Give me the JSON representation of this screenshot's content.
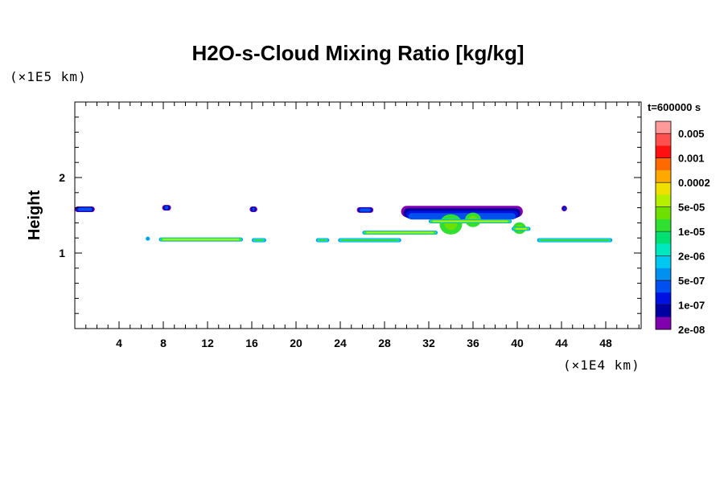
{
  "chart_data": {
    "type": "heatmap",
    "title": "H2O-s-Cloud Mixing Ratio [kg/kg]",
    "ylabel": "Height",
    "xlabel": "",
    "x_scale_label": "(×1E4 km)",
    "y_scale_label": "(×1E5 km)",
    "time_label": "t=600000 s",
    "xlim": [
      0,
      51.2
    ],
    "ylim": [
      0,
      3.0
    ],
    "x_ticks": [
      "4",
      "8",
      "12",
      "16",
      "20",
      "24",
      "28",
      "32",
      "36",
      "40",
      "44",
      "48"
    ],
    "x_tick_values": [
      4,
      8,
      12,
      16,
      20,
      24,
      28,
      32,
      36,
      40,
      44,
      48
    ],
    "y_ticks": [
      "1",
      "2"
    ],
    "y_tick_values": [
      1,
      2
    ],
    "colorbar": {
      "labels": [
        "0.005",
        "0.001",
        "0.0002",
        "5e-05",
        "1e-05",
        "2e-06",
        "5e-07",
        "1e-07",
        "2e-08"
      ],
      "colors_top_to_bottom": [
        "#ff9a9a",
        "#ff5050",
        "#ff1010",
        "#ff6a00",
        "#ffa800",
        "#f0e000",
        "#b4f000",
        "#6ee000",
        "#30e030",
        "#00e070",
        "#00e8c0",
        "#00c8f0",
        "#0090f0",
        "#0050f0",
        "#0010e0",
        "#0000a0",
        "#8000b0"
      ]
    },
    "features": [
      {
        "x0": 0.0,
        "x1": 1.8,
        "y": 1.58,
        "level": "2e-08"
      },
      {
        "x0": 7.9,
        "x1": 8.7,
        "y": 1.6,
        "level": "2e-08"
      },
      {
        "x0": 15.8,
        "x1": 16.5,
        "y": 1.58,
        "level": "2e-08"
      },
      {
        "x0": 25.5,
        "x1": 27.0,
        "y": 1.57,
        "level": "2e-08"
      },
      {
        "x0": 29.5,
        "x1": 40.5,
        "y": 1.55,
        "level": "2e-08"
      },
      {
        "x0": 44.0,
        "x1": 44.5,
        "y": 1.59,
        "level": "2e-08"
      },
      {
        "x0": 6.4,
        "x1": 6.8,
        "y": 1.19,
        "level": "5e-07"
      },
      {
        "x0": 7.6,
        "x1": 15.2,
        "y": 1.18,
        "level": "1e-05"
      },
      {
        "x0": 16.0,
        "x1": 17.3,
        "y": 1.17,
        "level": "2e-06"
      },
      {
        "x0": 21.8,
        "x1": 23.0,
        "y": 1.17,
        "level": "2e-06"
      },
      {
        "x0": 23.8,
        "x1": 29.5,
        "y": 1.17,
        "level": "2e-06"
      },
      {
        "x0": 26.0,
        "x1": 32.8,
        "y": 1.27,
        "level": "1e-05"
      },
      {
        "x0": 32.0,
        "x1": 39.5,
        "y": 1.42,
        "level": "1e-05"
      },
      {
        "x0": 39.5,
        "x1": 41.2,
        "y": 1.32,
        "level": "1e-05"
      },
      {
        "x0": 41.8,
        "x1": 48.6,
        "y": 1.17,
        "level": "2e-06"
      }
    ]
  }
}
